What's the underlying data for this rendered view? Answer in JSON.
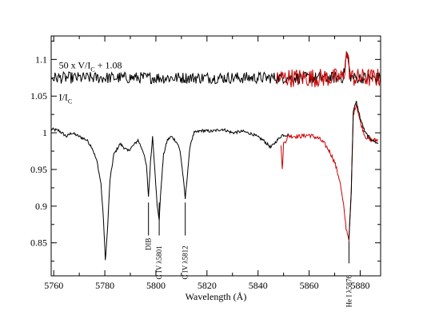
{
  "chart_data": {
    "type": "line",
    "title": "",
    "xlabel": "Wavelength (Å)",
    "ylabel": "",
    "xlim": [
      5759,
      5888
    ],
    "ylim": [
      0.805,
      1.132
    ],
    "x_ticks": [
      5760,
      5780,
      5800,
      5820,
      5840,
      5860,
      5880
    ],
    "y_ticks": [
      0.85,
      0.9,
      0.95,
      1,
      1.05,
      1.1
    ],
    "y_tick_labels": [
      "0.85",
      "0.9",
      "0.95",
      "1",
      "1.05",
      "1.1"
    ],
    "grid": false,
    "legend": "none",
    "annotations": {
      "stokes_v": {
        "prefix": "50 x V/I",
        "sub": "C",
        "suffix": " + 1.08",
        "x": 5762,
        "y": 1.088
      },
      "stokes_i": {
        "prefix": "I/I",
        "sub": "C",
        "x": 5762,
        "y": 1.044
      }
    },
    "line_ids": [
      {
        "label": "DIB",
        "x": 5797.1,
        "y_top": 0.905,
        "y_bottom": 0.86
      },
      {
        "label": "C IV λ5801",
        "x": 5801.3,
        "y_top": 0.905,
        "y_bottom": 0.86
      },
      {
        "label": "C IV λ5812",
        "x": 5811.5,
        "y_top": 0.905,
        "y_bottom": 0.86
      },
      {
        "label": "He I λ5876",
        "x": 5875.6,
        "y_top": 0.852,
        "y_bottom": 0.822
      }
    ],
    "series": [
      {
        "color": "#000000",
        "x": [
          5759,
          5762,
          5765,
          5767,
          5770,
          5773,
          5775,
          5777,
          5778.5,
          5779.5,
          5780.2,
          5781,
          5782,
          5783.5,
          5786,
          5789,
          5791,
          5793,
          5795,
          5796.3,
          5797.1,
          5797.9,
          5798.7,
          5799.7,
          5800.5,
          5801.3,
          5802.1,
          5803,
          5804.5,
          5806,
          5807.5,
          5808.5,
          5809.5,
          5810.5,
          5811.5,
          5812.5,
          5813.5,
          5815,
          5818,
          5822,
          5826,
          5830,
          5834,
          5838,
          5842,
          5845,
          5847,
          5849.5,
          5852
        ],
        "y": [
          1.005,
          1.003,
          0.995,
          1.0,
          0.995,
          0.99,
          0.98,
          0.96,
          0.93,
          0.88,
          0.826,
          0.865,
          0.935,
          0.97,
          0.985,
          0.975,
          0.982,
          0.99,
          0.975,
          0.955,
          0.913,
          0.96,
          0.995,
          0.945,
          0.9,
          0.882,
          0.93,
          0.97,
          0.99,
          0.995,
          0.99,
          0.985,
          0.975,
          0.945,
          0.91,
          0.95,
          0.985,
          1.0,
          1.003,
          1.002,
          1.005,
          1.0,
          1.002,
          0.998,
          0.99,
          0.98,
          0.988,
          0.997,
          0.997
        ]
      },
      {
        "color": "#cc0000",
        "x": [
          5849,
          5849.5,
          5850,
          5852,
          5856,
          5860,
          5864,
          5866,
          5868,
          5870,
          5872,
          5873.5,
          5874.5,
          5875.6,
          5876.5,
          5877.3,
          5878.5,
          5880,
          5882,
          5884,
          5887
        ],
        "y": [
          0.985,
          0.948,
          0.985,
          0.996,
          0.995,
          0.997,
          0.992,
          0.985,
          0.975,
          0.96,
          0.935,
          0.9,
          0.87,
          0.855,
          0.92,
          1.025,
          1.04,
          1.015,
          0.995,
          0.99,
          0.99
        ]
      },
      {
        "color": "#000000",
        "x": [
          5875.6,
          5876.5,
          5877.3,
          5878.5,
          5880,
          5882,
          5884,
          5887
        ],
        "y": [
          0.855,
          0.92,
          1.03,
          1.042,
          1.02,
          1.0,
          0.992,
          0.985
        ]
      }
    ],
    "stokes_v": {
      "color": "#000000",
      "red_color": "#cc0000",
      "base": 1.075,
      "x_start": 5759,
      "x_end": 5888,
      "red_x_start": 5847,
      "bump_x": 5874.8,
      "bump_y": 1.107
    }
  }
}
